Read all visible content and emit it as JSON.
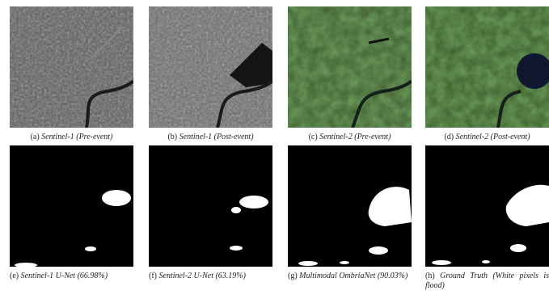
{
  "figure": {
    "panels": [
      {
        "label": "(a)",
        "caption": "Sentinel-1 (Pre-event)"
      },
      {
        "label": "(b)",
        "caption": "Sentinel-1 (Post-event)"
      },
      {
        "label": "(c)",
        "caption": "Sentinel-2 (Pre-event)"
      },
      {
        "label": "(d)",
        "caption": "Sentinel-2 (Post-event)"
      },
      {
        "label": "(e)",
        "caption": "Sentinel-1 U-Net (66.98%)"
      },
      {
        "label": "(f)",
        "caption": "Sentinel-2 U-Net (63.19%)"
      },
      {
        "label": "(g)",
        "caption": "Multimodal OmbriaNet (90.03%)"
      },
      {
        "label": "(h)",
        "caption": "Ground Truth (White pixels is flood)"
      }
    ]
  }
}
